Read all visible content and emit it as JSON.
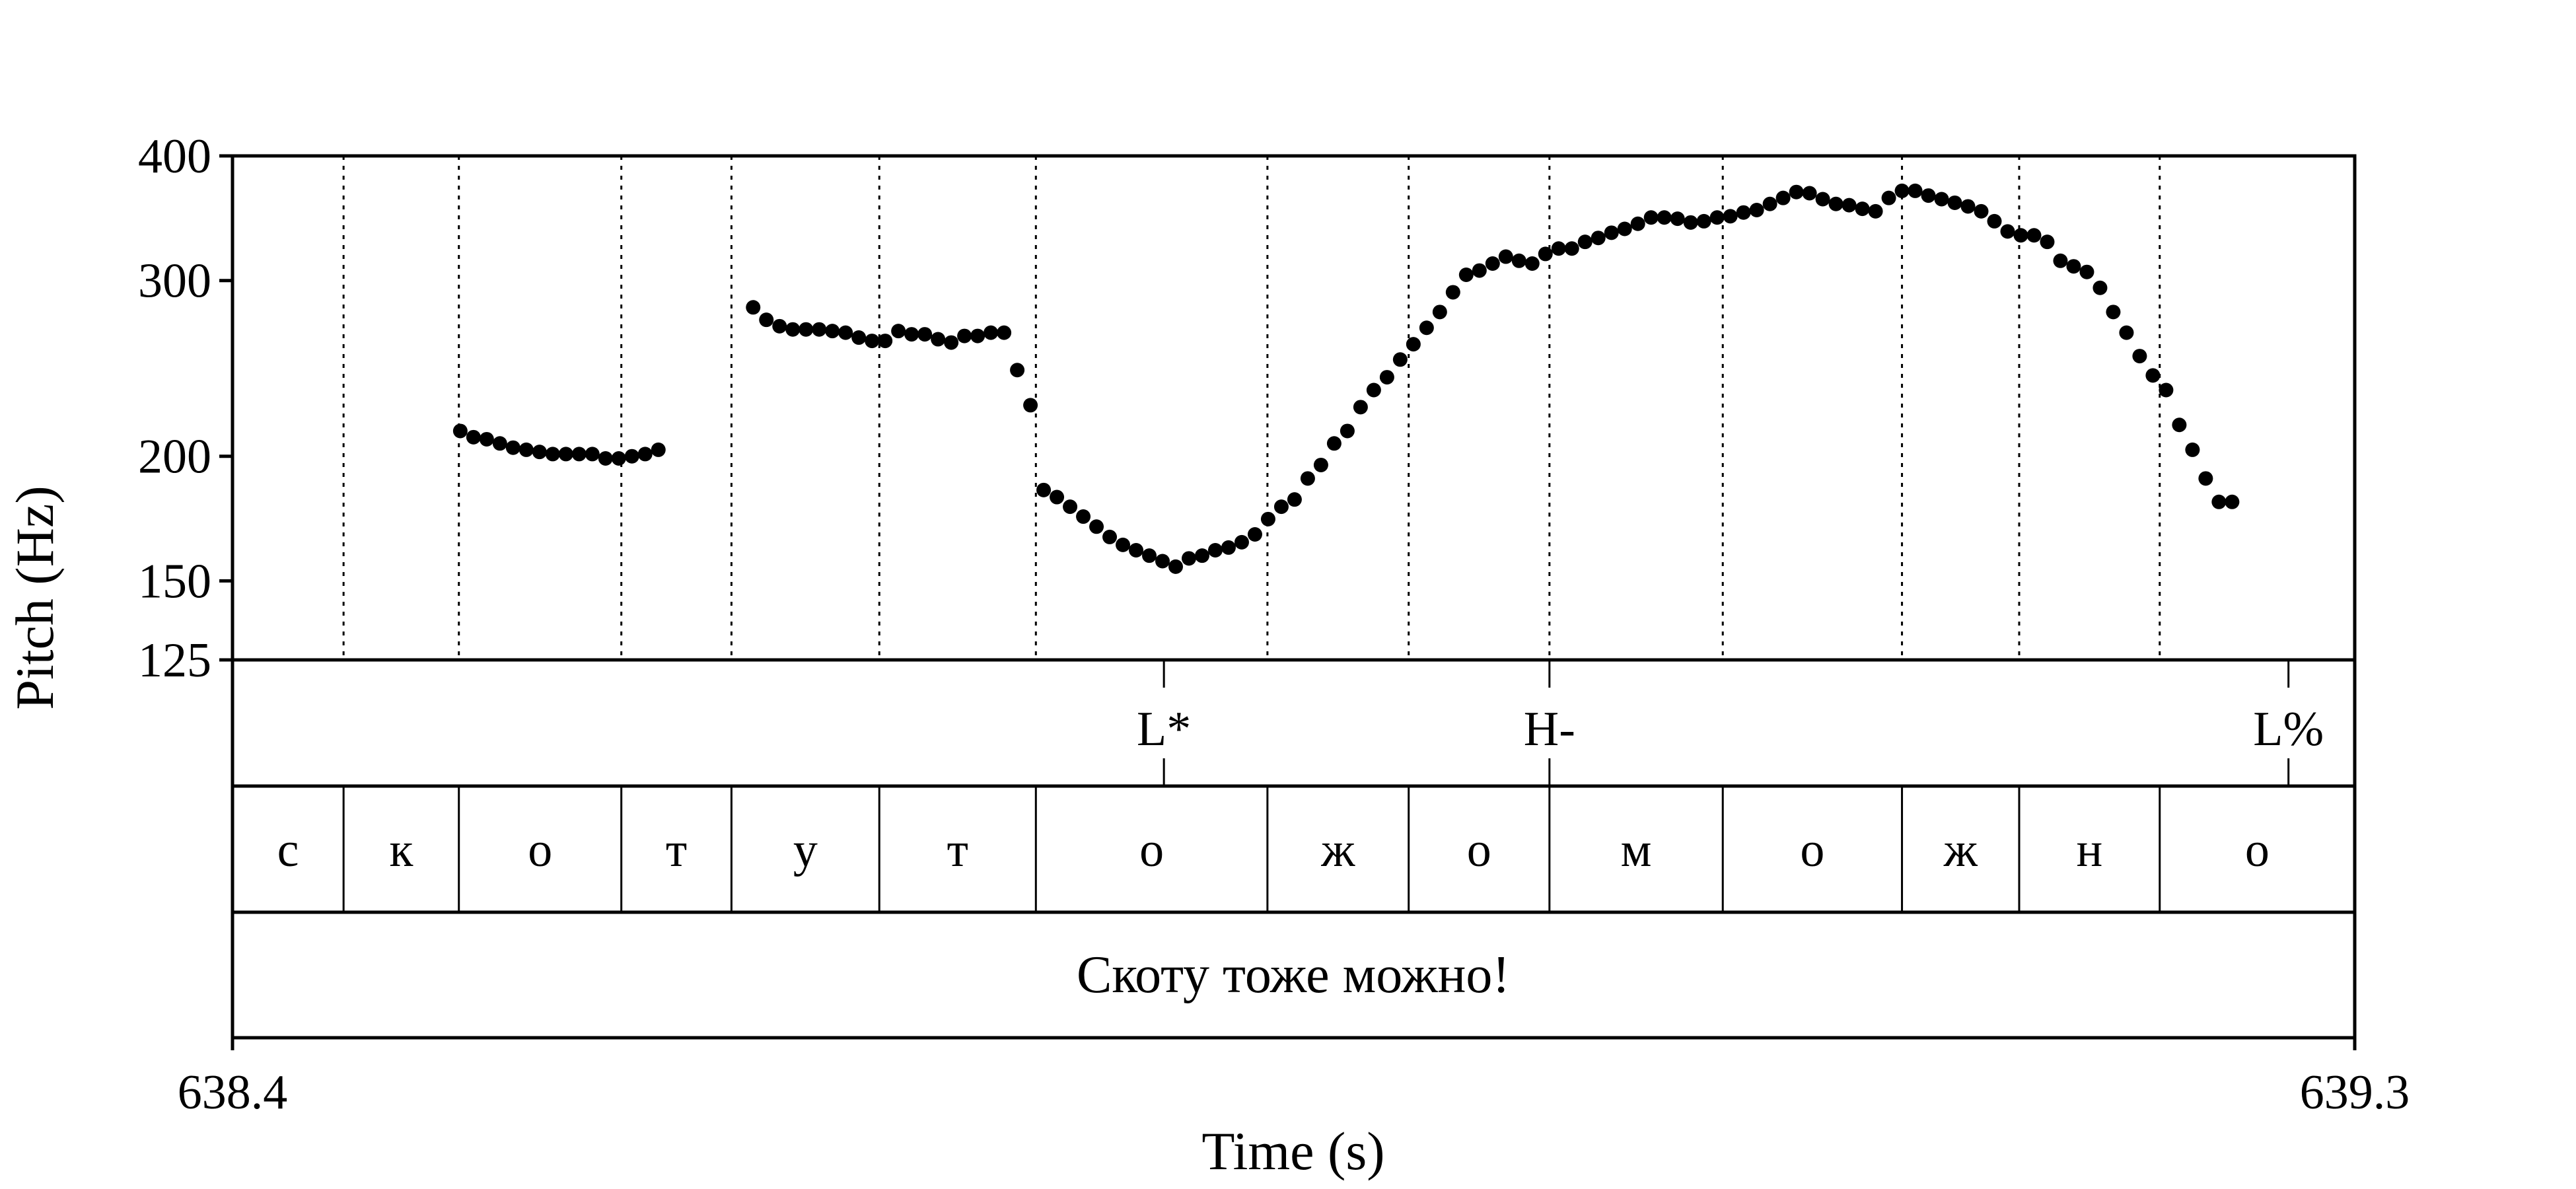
{
  "chart_data": {
    "type": "scatter",
    "title": "",
    "xlabel": "Time (s)",
    "ylabel": "Pitch (Hz)",
    "x_scale": "linear",
    "y_scale": "log",
    "xlim": [
      638.4,
      639.3
    ],
    "ylim": [
      125,
      400
    ],
    "x_tick_labels": [
      "638.4",
      "639.3"
    ],
    "y_ticks": [
      125,
      150,
      200,
      300,
      400
    ],
    "y_tick_labels": [
      "125",
      "150",
      "200",
      "300",
      "400"
    ],
    "grid": "dotted vertical lines at segment boundaries",
    "marker_color": "#000000",
    "series": [
      {
        "values": [
          [
            638.4966,
            212
          ],
          [
            638.5022,
            209
          ],
          [
            638.5078,
            208
          ],
          [
            638.5134,
            206
          ],
          [
            638.519,
            204
          ],
          [
            638.5246,
            203
          ],
          [
            638.5302,
            202
          ],
          [
            638.5358,
            201
          ],
          [
            638.5414,
            201
          ],
          [
            638.547,
            201
          ],
          [
            638.5526,
            201
          ],
          [
            638.5582,
            199
          ],
          [
            638.5638,
            199
          ],
          [
            638.5694,
            200
          ],
          [
            638.575,
            201
          ],
          [
            638.5806,
            203
          ],
          [
            638.6208,
            282
          ],
          [
            638.6264,
            274
          ],
          [
            638.632,
            270
          ],
          [
            638.6376,
            268
          ],
          [
            638.6432,
            268
          ],
          [
            638.6488,
            268
          ],
          [
            638.6544,
            267
          ],
          [
            638.66,
            266
          ],
          [
            638.6656,
            263
          ],
          [
            638.6712,
            261
          ],
          [
            638.6768,
            261
          ],
          [
            638.6824,
            267
          ],
          [
            638.688,
            265
          ],
          [
            638.6936,
            265
          ],
          [
            638.6992,
            262
          ],
          [
            638.7048,
            260
          ],
          [
            638.7104,
            264
          ],
          [
            638.716,
            264
          ],
          [
            638.7216,
            266
          ],
          [
            638.7272,
            266
          ],
          [
            638.7328,
            244
          ],
          [
            638.7384,
            225
          ],
          [
            638.744,
            185
          ],
          [
            638.7496,
            182
          ],
          [
            638.7552,
            178
          ],
          [
            638.7608,
            174
          ],
          [
            638.7664,
            170
          ],
          [
            638.772,
            166
          ],
          [
            638.7776,
            163
          ],
          [
            638.7832,
            161
          ],
          [
            638.7888,
            159
          ],
          [
            638.7944,
            157
          ],
          [
            638.8,
            155
          ],
          [
            638.8056,
            158
          ],
          [
            638.8112,
            159
          ],
          [
            638.8168,
            161
          ],
          [
            638.8224,
            162
          ],
          [
            638.828,
            164
          ],
          [
            638.8336,
            167
          ],
          [
            638.8392,
            173
          ],
          [
            638.8448,
            178
          ],
          [
            638.8504,
            181
          ],
          [
            638.856,
            190
          ],
          [
            638.8616,
            196
          ],
          [
            638.8672,
            206
          ],
          [
            638.8728,
            212
          ],
          [
            638.8784,
            224
          ],
          [
            638.884,
            233
          ],
          [
            638.8896,
            240
          ],
          [
            638.8952,
            250
          ],
          [
            638.9008,
            259
          ],
          [
            638.9064,
            269
          ],
          [
            638.912,
            279
          ],
          [
            638.9176,
            292
          ],
          [
            638.9232,
            304
          ],
          [
            638.9288,
            307
          ],
          [
            638.9344,
            312
          ],
          [
            638.94,
            317
          ],
          [
            638.9456,
            314
          ],
          [
            638.9512,
            312
          ],
          [
            638.9568,
            319
          ],
          [
            638.9624,
            323
          ],
          [
            638.968,
            323
          ],
          [
            638.9736,
            328
          ],
          [
            638.9792,
            331
          ],
          [
            638.9848,
            335
          ],
          [
            638.9904,
            338
          ],
          [
            638.996,
            342
          ],
          [
            639.0016,
            347
          ],
          [
            639.0072,
            347
          ],
          [
            639.0128,
            346
          ],
          [
            639.0184,
            343
          ],
          [
            639.024,
            344
          ],
          [
            639.0296,
            347
          ],
          [
            639.0352,
            348
          ],
          [
            639.0408,
            351
          ],
          [
            639.0464,
            353
          ],
          [
            639.052,
            358
          ],
          [
            639.0576,
            363
          ],
          [
            639.0632,
            368
          ],
          [
            639.0688,
            367
          ],
          [
            639.0744,
            362
          ],
          [
            639.08,
            358
          ],
          [
            639.0856,
            357
          ],
          [
            639.0912,
            354
          ],
          [
            639.0968,
            352
          ],
          [
            639.1024,
            363
          ],
          [
            639.108,
            369
          ],
          [
            639.1136,
            369
          ],
          [
            639.1192,
            365
          ],
          [
            639.1248,
            362
          ],
          [
            639.1304,
            359
          ],
          [
            639.136,
            356
          ],
          [
            639.1416,
            352
          ],
          [
            639.1472,
            344
          ],
          [
            639.1528,
            336
          ],
          [
            639.1584,
            333
          ],
          [
            639.164,
            333
          ],
          [
            639.1696,
            328
          ],
          [
            639.1752,
            314
          ],
          [
            639.1808,
            310
          ],
          [
            639.1864,
            306
          ],
          [
            639.192,
            295
          ],
          [
            639.1976,
            279
          ],
          [
            639.2032,
            266
          ],
          [
            639.2088,
            252
          ],
          [
            639.2144,
            241
          ],
          [
            639.22,
            233
          ],
          [
            639.2256,
            215
          ],
          [
            639.2312,
            203
          ],
          [
            639.2368,
            190
          ],
          [
            639.2424,
            180
          ],
          [
            639.248,
            180
          ]
        ]
      }
    ]
  },
  "tiers": {
    "boundaries": [
      638.4,
      638.4471,
      638.496,
      638.5649,
      638.6116,
      638.6743,
      638.7407,
      638.8389,
      638.8988,
      638.9585,
      639.032,
      639.108,
      639.1577,
      639.2173,
      639.3
    ],
    "tones": [
      {
        "time": 638.795,
        "label": "L*"
      },
      {
        "time": 638.9585,
        "label": "H-"
      },
      {
        "time": 639.2719,
        "label": "L%"
      }
    ],
    "segments": [
      "с",
      "к",
      "о",
      "т",
      "у",
      "т",
      "о",
      "ж",
      "о",
      "м",
      "о",
      "ж",
      "н",
      "о"
    ],
    "sentence": "Скоту тоже можно!"
  }
}
